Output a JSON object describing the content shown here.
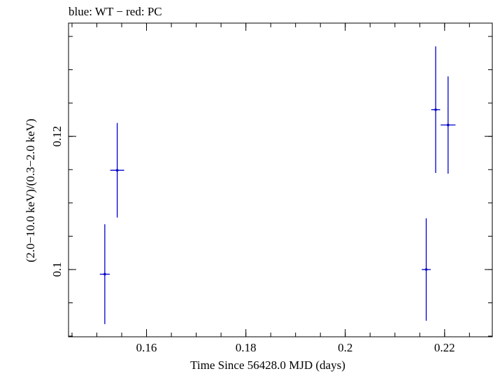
{
  "chart_data": {
    "type": "scatter",
    "title": "blue: WT − red: PC",
    "xlabel": "Time Since 56428.0 MJD (days)",
    "ylabel": "(2.0−10.0 keV)/(0.3−2.0 keV)",
    "xlim": [
      0.1443,
      0.2296
    ],
    "ylim": [
      0.0899,
      0.137
    ],
    "xticks": [
      {
        "value": 0.16,
        "label": "0.16"
      },
      {
        "value": 0.18,
        "label": "0.18"
      },
      {
        "value": 0.2,
        "label": "0.2"
      },
      {
        "value": 0.22,
        "label": "0.22"
      }
    ],
    "xminor_step": 0.005,
    "yticks": [
      {
        "value": 0.1,
        "label": "0.1"
      },
      {
        "value": 0.12,
        "label": "0.12"
      }
    ],
    "yminor_step": 0.005,
    "grid": false,
    "series": [
      {
        "name": "WT",
        "color": "#0000cc",
        "points": [
          {
            "x": 0.1516,
            "y": 0.0993,
            "xerr": 0.001,
            "yerr": 0.0075
          },
          {
            "x": 0.1541,
            "y": 0.1149,
            "xerr": 0.0014,
            "yerr": 0.0071
          },
          {
            "x": 0.2163,
            "y": 0.1,
            "xerr": 0.0009,
            "yerr": 0.0077
          },
          {
            "x": 0.2182,
            "y": 0.124,
            "xerr": 0.0009,
            "yerr": 0.0095
          },
          {
            "x": 0.2207,
            "y": 0.1217,
            "xerr": 0.0015,
            "yerr": 0.0073
          }
        ]
      }
    ]
  }
}
